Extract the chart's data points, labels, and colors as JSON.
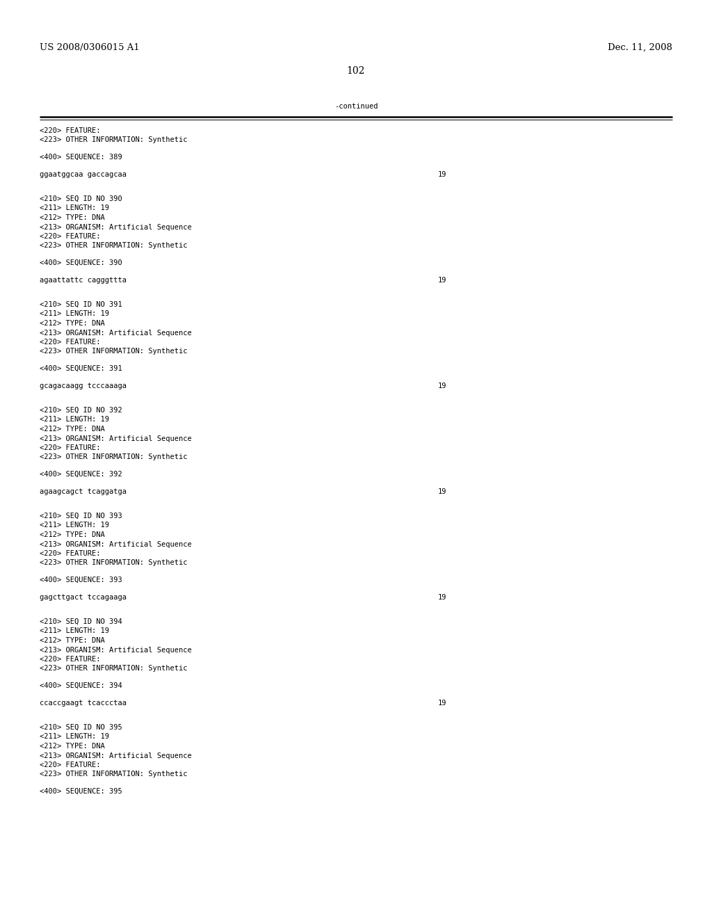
{
  "bg_color": "#ffffff",
  "header_left": "US 2008/0306015 A1",
  "header_right": "Dec. 11, 2008",
  "page_number": "102",
  "continued_text": "-continued",
  "font_size_header": 9.5,
  "font_size_body": 7.5,
  "font_size_page": 10,
  "content_blocks": [
    {
      "type": "feature_block",
      "lines_before": [
        "<220> FEATURE:",
        "<223> OTHER INFORMATION: Synthetic"
      ],
      "sequence_label": "<400> SEQUENCE: 389",
      "sequence": "ggaatggcaa gaccagcaa",
      "seq_length": "19"
    },
    {
      "type": "full_block",
      "meta_lines": [
        "<210> SEQ ID NO 390",
        "<211> LENGTH: 19",
        "<212> TYPE: DNA",
        "<213> ORGANISM: Artificial Sequence",
        "<220> FEATURE:",
        "<223> OTHER INFORMATION: Synthetic"
      ],
      "sequence_label": "<400> SEQUENCE: 390",
      "sequence": "agaattattc cagggttta",
      "seq_length": "19"
    },
    {
      "type": "full_block",
      "meta_lines": [
        "<210> SEQ ID NO 391",
        "<211> LENGTH: 19",
        "<212> TYPE: DNA",
        "<213> ORGANISM: Artificial Sequence",
        "<220> FEATURE:",
        "<223> OTHER INFORMATION: Synthetic"
      ],
      "sequence_label": "<400> SEQUENCE: 391",
      "sequence": "gcagacaagg tcccaaaga",
      "seq_length": "19"
    },
    {
      "type": "full_block",
      "meta_lines": [
        "<210> SEQ ID NO 392",
        "<211> LENGTH: 19",
        "<212> TYPE: DNA",
        "<213> ORGANISM: Artificial Sequence",
        "<220> FEATURE:",
        "<223> OTHER INFORMATION: Synthetic"
      ],
      "sequence_label": "<400> SEQUENCE: 392",
      "sequence": "agaagcagct tcaggatga",
      "seq_length": "19"
    },
    {
      "type": "full_block",
      "meta_lines": [
        "<210> SEQ ID NO 393",
        "<211> LENGTH: 19",
        "<212> TYPE: DNA",
        "<213> ORGANISM: Artificial Sequence",
        "<220> FEATURE:",
        "<223> OTHER INFORMATION: Synthetic"
      ],
      "sequence_label": "<400> SEQUENCE: 393",
      "sequence": "gagcttgact tccagaaga",
      "seq_length": "19"
    },
    {
      "type": "full_block",
      "meta_lines": [
        "<210> SEQ ID NO 394",
        "<211> LENGTH: 19",
        "<212> TYPE: DNA",
        "<213> ORGANISM: Artificial Sequence",
        "<220> FEATURE:",
        "<223> OTHER INFORMATION: Synthetic"
      ],
      "sequence_label": "<400> SEQUENCE: 394",
      "sequence": "ccaccgaagt tcaccctaa",
      "seq_length": "19"
    },
    {
      "type": "partial_block",
      "meta_lines": [
        "<210> SEQ ID NO 395",
        "<211> LENGTH: 19",
        "<212> TYPE: DNA",
        "<213> ORGANISM: Artificial Sequence",
        "<220> FEATURE:",
        "<223> OTHER INFORMATION: Synthetic"
      ],
      "sequence_label": "<400> SEQUENCE: 395",
      "sequence": null,
      "seq_length": null
    }
  ]
}
